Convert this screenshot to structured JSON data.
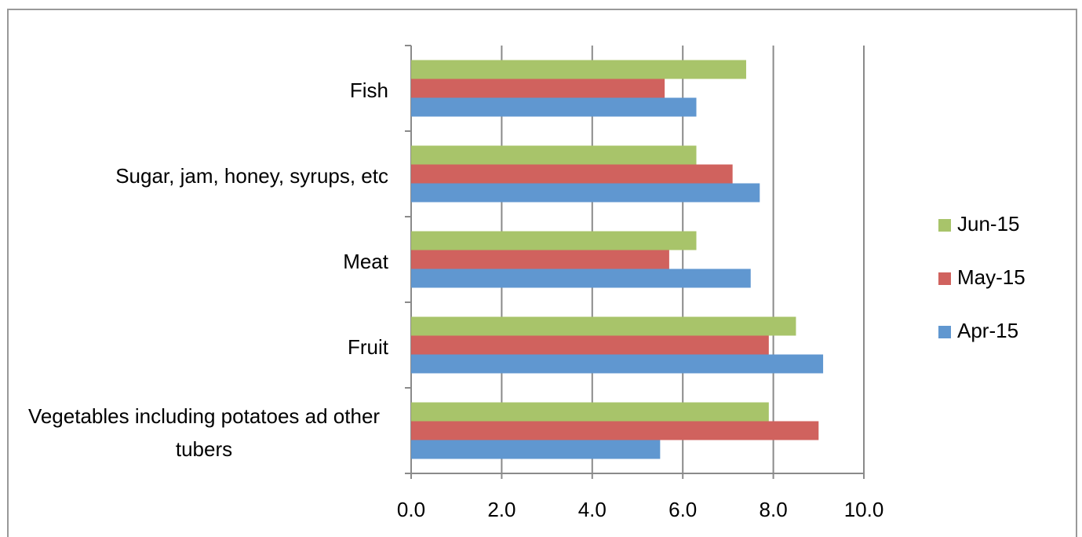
{
  "chart_data": {
    "type": "bar",
    "orientation": "horizontal",
    "categories": [
      "Vegetables including potatoes ad other tubers",
      "Fruit",
      "Meat",
      "Sugar, jam, honey, syrups, etc",
      "Fish"
    ],
    "series": [
      {
        "name": "Apr-15",
        "color": "#6097d0",
        "values": [
          5.5,
          9.1,
          7.5,
          7.7,
          6.3
        ]
      },
      {
        "name": "May-15",
        "color": "#d0625e",
        "values": [
          9.0,
          7.9,
          5.7,
          7.1,
          5.6
        ]
      },
      {
        "name": "Jun-15",
        "color": "#a8c46a",
        "values": [
          7.9,
          8.5,
          6.3,
          6.3,
          7.4
        ]
      }
    ],
    "xlim": [
      0,
      10
    ],
    "xticks": [
      {
        "value": 0,
        "label": "0.0"
      },
      {
        "value": 2,
        "label": "2.0"
      },
      {
        "value": 4,
        "label": "4.0"
      },
      {
        "value": 6,
        "label": "6.0"
      },
      {
        "value": 8,
        "label": "8.0"
      },
      {
        "value": 10,
        "label": "10.0"
      }
    ],
    "grid": true,
    "legend": "right"
  }
}
